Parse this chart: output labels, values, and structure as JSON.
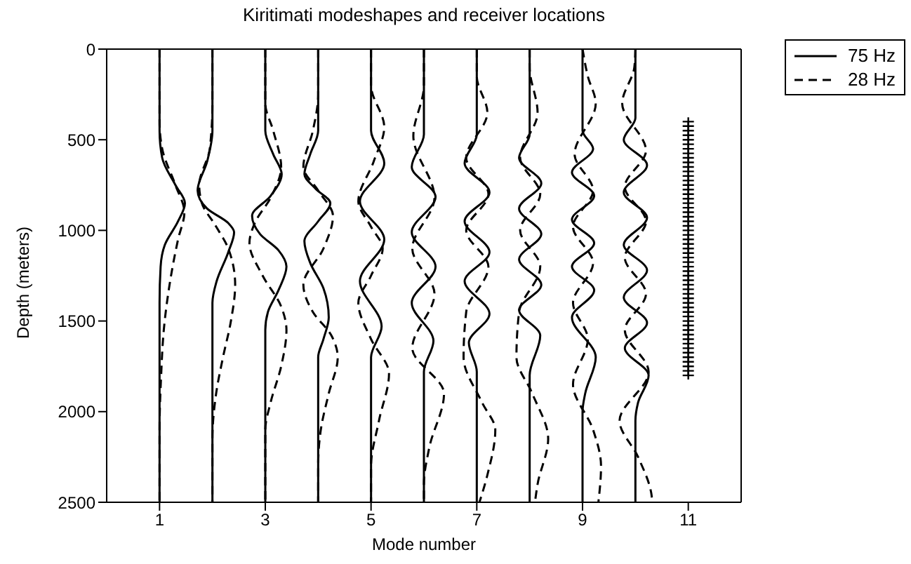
{
  "chart_data": {
    "type": "line",
    "title": "Kiritimati modeshapes and receiver locations",
    "xlabel": "Mode number",
    "ylabel": "Depth (meters)",
    "xlim": [
      0,
      12
    ],
    "xticks": [
      1,
      3,
      5,
      7,
      9,
      11
    ],
    "ylim": [
      2500,
      0
    ],
    "yticks": [
      0,
      500,
      1000,
      1500,
      2000,
      2500
    ],
    "legend": "top right",
    "marker": "none",
    "series": [
      {
        "name": "75 Hz",
        "color": "#000000",
        "line_style": "solid",
        "x": [
          1,
          1,
          1.05,
          1.3,
          1.48,
          1.35,
          1.1,
          1.02,
          1,
          1
        ],
        "values": [
          0,
          450,
          600,
          750,
          850,
          950,
          1080,
          1200,
          1400,
          2500
        ]
      },
      {
        "name": "28 Hz",
        "color": "#000000",
        "line_style": "dashed",
        "x": [
          1,
          1,
          1.05,
          1.3,
          1.47,
          1.35,
          1.2,
          1.08,
          1.03,
          1,
          1
        ],
        "values": [
          0,
          400,
          550,
          750,
          900,
          1050,
          1280,
          1550,
          1800,
          2100,
          2500
        ]
      },
      {
        "color": "#000000",
        "line_style": "solid",
        "x": [
          2,
          2,
          1.9,
          1.72,
          1.9,
          2.3,
          2.41,
          2.3,
          2.08,
          2,
          2
        ],
        "values": [
          0,
          450,
          620,
          780,
          880,
          960,
          1010,
          1120,
          1280,
          1400,
          2500
        ]
      },
      {
        "color": "#000000",
        "line_style": "dashed",
        "x": [
          2,
          2,
          1.95,
          1.75,
          1.8,
          2.05,
          2.3,
          2.43,
          2.35,
          2.2,
          2.07,
          2,
          2
        ],
        "values": [
          0,
          300,
          550,
          750,
          850,
          970,
          1100,
          1300,
          1500,
          1700,
          1900,
          2150,
          2500
        ]
      },
      {
        "color": "#000000",
        "line_style": "solid",
        "x": [
          3,
          3,
          3.15,
          3.31,
          3.1,
          2.75,
          2.9,
          3.25,
          3.4,
          3.25,
          3.05,
          3,
          3
        ],
        "values": [
          0,
          450,
          580,
          690,
          810,
          920,
          1020,
          1110,
          1200,
          1330,
          1450,
          1550,
          2500
        ]
      },
      {
        "color": "#000000",
        "line_style": "dashed",
        "x": [
          3,
          3,
          3.15,
          3.3,
          3.1,
          2.8,
          2.7,
          2.95,
          3.3,
          3.4,
          3.3,
          3.1,
          3,
          3
        ],
        "values": [
          0,
          300,
          450,
          650,
          820,
          960,
          1070,
          1250,
          1420,
          1550,
          1750,
          1950,
          2100,
          2500
        ]
      },
      {
        "color": "#000000",
        "line_style": "solid",
        "x": [
          4,
          4,
          3.85,
          3.74,
          3.95,
          4.23,
          4,
          3.74,
          3.85,
          4.1,
          4.2,
          4.1,
          4,
          4
        ],
        "values": [
          0,
          450,
          580,
          690,
          770,
          850,
          950,
          1060,
          1180,
          1320,
          1480,
          1600,
          1700,
          2500
        ]
      },
      {
        "color": "#000000",
        "line_style": "dashed",
        "x": [
          4,
          4,
          3.9,
          3.72,
          4,
          4.28,
          4.1,
          3.72,
          3.9,
          4.25,
          4.37,
          4.2,
          4.05,
          4,
          4
        ],
        "values": [
          0,
          250,
          450,
          650,
          780,
          920,
          1100,
          1300,
          1450,
          1580,
          1700,
          1900,
          2100,
          2300,
          2500
        ]
      },
      {
        "color": "#000000",
        "line_style": "solid",
        "x": [
          5,
          5,
          5.25,
          4.79,
          5.25,
          4.79,
          5.2,
          5,
          5
        ],
        "values": [
          0,
          450,
          630,
          840,
          1050,
          1280,
          1530,
          1700,
          2500
        ]
      },
      {
        "color": "#000000",
        "line_style": "dashed",
        "x": [
          5,
          5,
          5.25,
          5.05,
          4.76,
          5,
          5.22,
          5,
          4.76,
          5,
          5.34,
          5.15,
          5,
          5
        ],
        "values": [
          0,
          200,
          430,
          620,
          840,
          980,
          1100,
          1250,
          1400,
          1600,
          1790,
          2050,
          2300,
          2500
        ]
      },
      {
        "color": "#000000",
        "line_style": "solid",
        "x": [
          6,
          6,
          5.77,
          6.22,
          5.77,
          6.22,
          5.77,
          6.18,
          6,
          6
        ],
        "values": [
          0,
          470,
          650,
          815,
          1010,
          1200,
          1400,
          1610,
          1780,
          2500
        ]
      },
      {
        "color": "#000000",
        "line_style": "dashed",
        "x": [
          6,
          6,
          5.8,
          6.2,
          5.78,
          6.2,
          5.78,
          6.38,
          6.1,
          6,
          6
        ],
        "values": [
          0,
          200,
          480,
          820,
          1100,
          1350,
          1650,
          1900,
          2200,
          2400,
          2500
        ]
      },
      {
        "color": "#000000",
        "line_style": "solid",
        "x": [
          7,
          7,
          6.77,
          7.24,
          6.77,
          7.24,
          6.77,
          7.24,
          6.85,
          7,
          7
        ],
        "values": [
          0,
          470,
          630,
          790,
          950,
          1120,
          1280,
          1460,
          1620,
          1780,
          2500
        ]
      },
      {
        "color": "#000000",
        "line_style": "dashed",
        "x": [
          7,
          7,
          7.2,
          6.8,
          7.22,
          6.8,
          7.22,
          6.8,
          6.75,
          7.1,
          7.35,
          7.2,
          7.05
        ],
        "values": [
          0,
          150,
          350,
          600,
          800,
          1000,
          1200,
          1450,
          1700,
          1950,
          2100,
          2350,
          2500
        ]
      },
      {
        "color": "#000000",
        "line_style": "solid",
        "x": [
          8,
          8,
          7.8,
          8.22,
          7.8,
          8.22,
          7.8,
          8.22,
          7.8,
          8.2,
          8,
          8
        ],
        "values": [
          0,
          470,
          600,
          740,
          880,
          1020,
          1160,
          1300,
          1440,
          1580,
          1800,
          2500
        ]
      },
      {
        "color": "#000000",
        "line_style": "dashed",
        "x": [
          8,
          8,
          8.15,
          7.82,
          8.2,
          7.82,
          8.2,
          7.8,
          7.75,
          8.05,
          8.35,
          8.15,
          8.1
        ],
        "values": [
          0,
          100,
          350,
          600,
          800,
          1000,
          1200,
          1450,
          1700,
          1900,
          2150,
          2400,
          2500
        ]
      },
      {
        "color": "#000000",
        "line_style": "solid",
        "x": [
          9,
          9,
          9.2,
          8.8,
          9.22,
          8.8,
          9.22,
          8.8,
          9.22,
          8.8,
          9.25,
          9.05,
          9,
          9
        ],
        "values": [
          0,
          450,
          550,
          680,
          810,
          940,
          1070,
          1200,
          1330,
          1480,
          1700,
          1900,
          2000,
          2500
        ]
      },
      {
        "color": "#000000",
        "line_style": "dashed",
        "x": [
          9,
          9.1,
          9.25,
          8.85,
          9.2,
          8.82,
          9.2,
          8.82,
          9.1,
          8.82,
          9.2,
          9.35,
          9.3
        ],
        "values": [
          0,
          150,
          300,
          580,
          780,
          980,
          1180,
          1400,
          1600,
          1850,
          2100,
          2300,
          2500
        ]
      },
      {
        "color": "#000000",
        "line_style": "solid",
        "x": [
          10,
          10,
          9.78,
          10.22,
          9.78,
          10.22,
          9.78,
          10.22,
          9.78,
          10.22,
          9.8,
          10.25,
          10.05,
          10,
          10
        ],
        "values": [
          0,
          380,
          500,
          640,
          790,
          930,
          1080,
          1220,
          1370,
          1510,
          1650,
          1800,
          1950,
          2050,
          2500
        ]
      },
      {
        "color": "#000000",
        "line_style": "dashed",
        "x": [
          10,
          9.98,
          9.75,
          10.2,
          9.8,
          10.2,
          9.8,
          10.2,
          9.8,
          10.25,
          9.7,
          10.05,
          10.3,
          10.32
        ],
        "values": [
          0,
          100,
          300,
          560,
          760,
          950,
          1150,
          1350,
          1550,
          1780,
          2050,
          2250,
          2450,
          2500
        ]
      },
      {
        "type": "scatter",
        "marker": "cross",
        "color": "#000000",
        "x": [
          11,
          11,
          11,
          11,
          11,
          11,
          11,
          11,
          11,
          11,
          11,
          11,
          11,
          11,
          11,
          11,
          11,
          11,
          11,
          11,
          11,
          11,
          11,
          11,
          11,
          11,
          11,
          11,
          11,
          11,
          11,
          11,
          11,
          11,
          11,
          11,
          11,
          11,
          11,
          11,
          11,
          11,
          11,
          11,
          11,
          11,
          11,
          11,
          11,
          11,
          11,
          11,
          11,
          11,
          11,
          11,
          11
        ],
        "values": [
          400,
          425,
          450,
          475,
          500,
          525,
          550,
          575,
          600,
          625,
          650,
          675,
          700,
          725,
          750,
          775,
          800,
          825,
          850,
          875,
          900,
          925,
          950,
          975,
          1000,
          1025,
          1050,
          1075,
          1100,
          1125,
          1150,
          1175,
          1200,
          1225,
          1250,
          1275,
          1300,
          1325,
          1350,
          1375,
          1400,
          1425,
          1450,
          1475,
          1500,
          1525,
          1550,
          1575,
          1600,
          1625,
          1650,
          1675,
          1700,
          1725,
          1750,
          1775,
          1800
        ]
      }
    ]
  }
}
